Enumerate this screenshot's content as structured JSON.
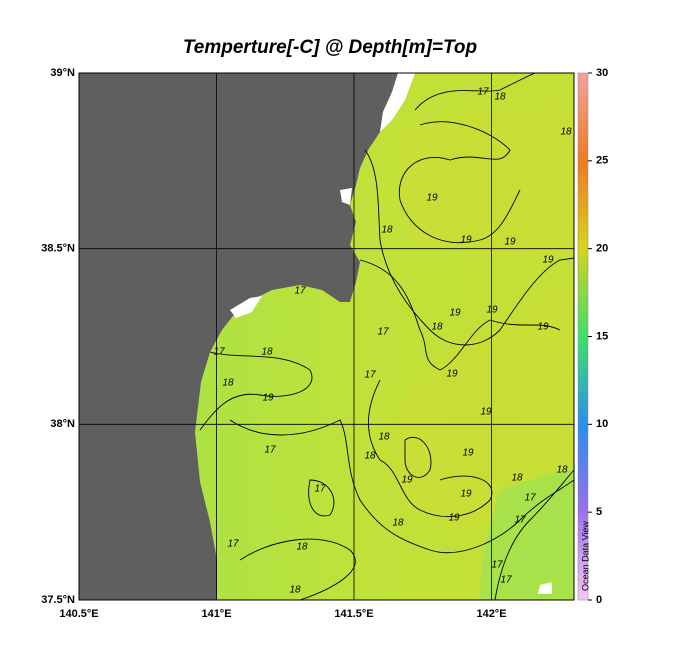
{
  "chart_data": {
    "type": "map",
    "title": "Temperture[-C] @ Depth[m]=Top",
    "credit": "Ocean Data View",
    "xlim": [
      140.5,
      142.3
    ],
    "ylim": [
      37.5,
      39
    ],
    "xticks": [
      {
        "value": 140.5,
        "label": "140.5°E"
      },
      {
        "value": 141,
        "label": "141°E"
      },
      {
        "value": 141.5,
        "label": "141.5°E"
      },
      {
        "value": 142,
        "label": "142°E"
      }
    ],
    "yticks": [
      {
        "value": 37.5,
        "label": "37.5°N"
      },
      {
        "value": 38,
        "label": "38°N"
      },
      {
        "value": 38.5,
        "label": "38.5°N"
      },
      {
        "value": 39,
        "label": "39°N"
      }
    ],
    "grid": true,
    "colorbar": {
      "lim": [
        0,
        30
      ],
      "ticks": [
        0,
        5,
        10,
        15,
        20,
        25,
        30
      ]
    },
    "contour_labels": [
      17,
      18,
      18,
      19,
      18,
      19,
      19,
      17,
      17,
      18,
      19,
      19,
      19,
      19,
      18,
      17,
      18,
      19,
      17,
      19,
      19,
      18,
      18,
      19,
      19,
      17,
      17,
      19,
      19,
      18,
      18,
      17,
      17,
      18,
      17,
      18,
      18,
      17,
      17
    ]
  }
}
